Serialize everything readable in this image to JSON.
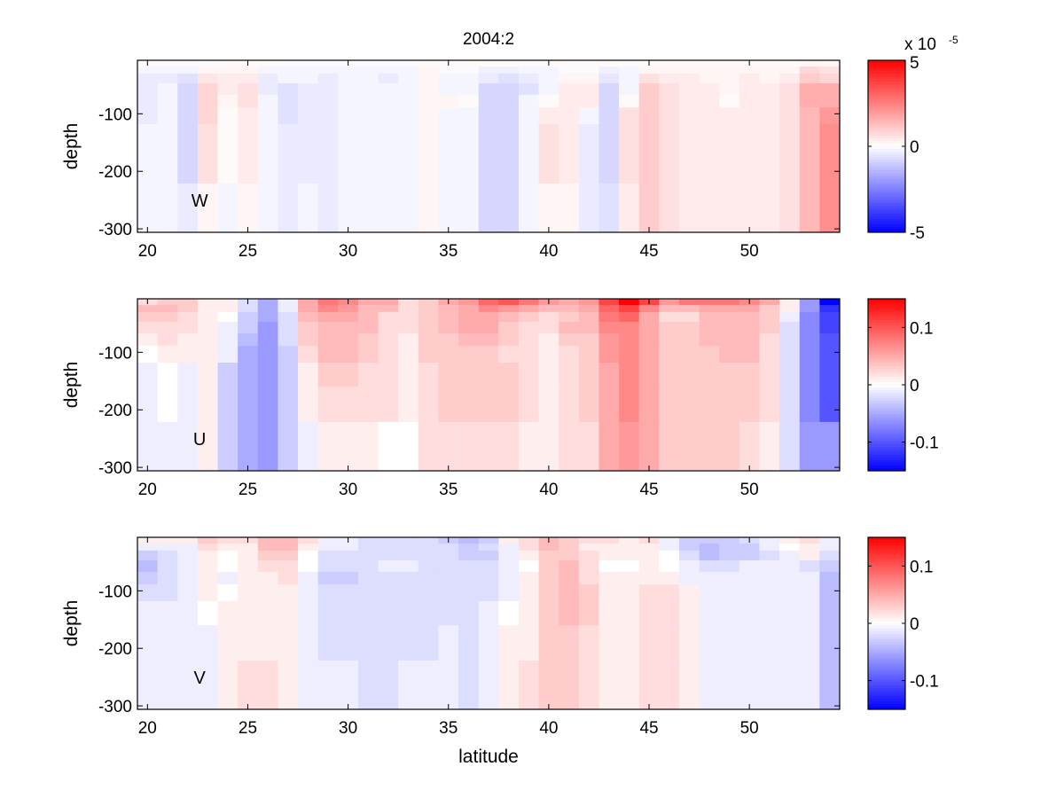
{
  "chart_data": {
    "type": "heatmap",
    "title": "2004:2",
    "xlabel": "latitude",
    "ylabel": "depth",
    "xlim": [
      19.5,
      54.5
    ],
    "ylim": [
      -306,
      -7
    ],
    "xticks": [
      20,
      25,
      30,
      35,
      40,
      45,
      50
    ],
    "yticks": [
      -100,
      -200,
      -300
    ],
    "latitudes": [
      20,
      21,
      22,
      23,
      24,
      25,
      26,
      27,
      28,
      29,
      30,
      31,
      32,
      33,
      34,
      35,
      36,
      37,
      38,
      39,
      40,
      41,
      42,
      43,
      44,
      45,
      46,
      47,
      48,
      49,
      50,
      51,
      52,
      53,
      54
    ],
    "depth_edges": [
      -7,
      -18,
      -30,
      -47,
      -67,
      -89,
      -118,
      -160,
      -221,
      -306
    ],
    "colormap": {
      "negative": "#0000ff",
      "zero": "#ffffff",
      "positive": "#ff0000"
    },
    "panels": [
      {
        "name": "W",
        "label": "W",
        "clim": [
          -5,
          5
        ],
        "colorbar": {
          "ticks": [
            5,
            0,
            -5
          ],
          "tick_labels": [
            "5",
            "0",
            "-5"
          ],
          "exponent_label": "x 10",
          "exponent": "-5"
        },
        "values": [
          [
            0.1,
            0.1,
            0.1,
            -0.1,
            0.1,
            0.1,
            0.1,
            -0.1,
            -0.1,
            -0.1,
            -0.1,
            -0.1,
            -0.1,
            -0.1,
            0.1,
            0.1,
            0.1,
            0.1,
            0.1,
            0.1,
            0.1,
            0.1,
            0.1,
            0.1,
            0.1,
            0.1,
            0.1,
            0.1,
            0.1,
            0.1,
            0.1,
            0.1,
            0.1,
            0.2,
            0.2
          ],
          [
            -0.2,
            -0.2,
            -0.2,
            0.2,
            0.2,
            0.2,
            -0.2,
            -0.2,
            -0.2,
            -0.2,
            -0.2,
            -0.2,
            -0.2,
            -0.2,
            0.2,
            -0.1,
            -0.1,
            -0.3,
            -0.3,
            -0.2,
            -0.2,
            -0.1,
            -0.1,
            -0.3,
            -0.2,
            0.2,
            0.2,
            0.2,
            0.2,
            0.2,
            0.2,
            0.2,
            0.2,
            0.8,
            0.6
          ],
          [
            -0.4,
            -0.4,
            -0.6,
            0.5,
            0.4,
            0.4,
            -0.4,
            -0.2,
            -0.2,
            -0.4,
            -0.2,
            -0.2,
            -0.4,
            -0.2,
            0.2,
            -0.2,
            -0.2,
            -0.4,
            -0.6,
            -0.4,
            -0.2,
            0.2,
            0.2,
            -0.5,
            -0.2,
            0.6,
            0.4,
            0.4,
            0.2,
            0.2,
            0.4,
            0.2,
            0.4,
            1.0,
            0.8
          ],
          [
            -0.4,
            -0.2,
            -0.8,
            0.8,
            0.4,
            0.6,
            -0.4,
            -0.6,
            -0.4,
            -0.4,
            -0.2,
            -0.2,
            -0.2,
            -0.2,
            0.2,
            -0.2,
            -0.2,
            -0.8,
            -0.8,
            -0.6,
            -0.2,
            0.4,
            0.4,
            -0.8,
            -0.2,
            1.0,
            0.6,
            0.4,
            0.4,
            0.2,
            0.4,
            0.4,
            0.6,
            1.6,
            1.6
          ],
          [
            -0.4,
            -0.2,
            -0.8,
            0.8,
            0.2,
            0.6,
            -0.2,
            -0.6,
            -0.4,
            -0.4,
            -0.2,
            -0.2,
            -0.2,
            -0.2,
            0.2,
            0.2,
            0.1,
            -0.8,
            -0.8,
            -0.2,
            0.1,
            0.4,
            0.4,
            -0.8,
            0.1,
            1.0,
            0.6,
            0.4,
            0.4,
            0.1,
            0.4,
            0.4,
            0.6,
            1.6,
            1.6
          ],
          [
            -0.4,
            -0.2,
            -0.8,
            0.8,
            0.1,
            0.4,
            -0.2,
            -0.6,
            -0.4,
            -0.4,
            -0.2,
            -0.2,
            -0.2,
            -0.2,
            0.2,
            -0.2,
            -0.2,
            -0.8,
            -0.8,
            -0.2,
            0.4,
            0.4,
            -0.2,
            -0.8,
            0.6,
            1.0,
            0.6,
            0.4,
            0.4,
            0.4,
            0.4,
            0.4,
            0.6,
            1.4,
            2.0
          ],
          [
            -0.2,
            -0.2,
            -0.8,
            0.6,
            0.1,
            0.4,
            -0.2,
            -0.4,
            -0.4,
            -0.4,
            -0.2,
            -0.2,
            -0.2,
            -0.2,
            0.2,
            -0.2,
            -0.2,
            -0.8,
            -0.8,
            -0.2,
            0.6,
            0.4,
            -0.4,
            -0.8,
            0.6,
            1.0,
            0.6,
            0.4,
            0.4,
            0.4,
            0.4,
            0.4,
            0.6,
            1.4,
            2.2
          ],
          [
            -0.2,
            -0.2,
            -0.8,
            0.6,
            0.1,
            0.4,
            -0.2,
            -0.4,
            -0.4,
            -0.4,
            -0.2,
            -0.2,
            -0.2,
            -0.2,
            0.2,
            -0.2,
            -0.2,
            -0.8,
            -0.8,
            -0.2,
            0.6,
            0.4,
            -0.4,
            -0.8,
            0.6,
            1.0,
            0.6,
            0.4,
            0.4,
            0.4,
            0.4,
            0.4,
            0.6,
            1.4,
            2.2
          ],
          [
            -0.2,
            -0.2,
            -0.4,
            0.2,
            -0.2,
            0.2,
            -0.2,
            -0.4,
            -0.2,
            -0.4,
            -0.2,
            -0.2,
            -0.2,
            -0.2,
            0.2,
            -0.2,
            -0.2,
            -0.8,
            -0.8,
            -0.2,
            0.2,
            0.2,
            -0.4,
            -0.6,
            0.4,
            1.0,
            0.6,
            0.4,
            0.4,
            0.4,
            0.4,
            0.4,
            0.6,
            1.4,
            2.2
          ]
        ]
      },
      {
        "name": "U",
        "label": "U",
        "clim": [
          -0.15,
          0.15
        ],
        "colorbar": {
          "ticks": [
            0.1,
            0,
            -0.1
          ],
          "tick_labels": [
            "0.1",
            "0",
            "-0.1"
          ]
        },
        "values": [
          [
            0.02,
            0.03,
            0.03,
            0.01,
            0.01,
            -0.02,
            -0.05,
            -0.01,
            0.05,
            0.08,
            0.07,
            0.05,
            0.05,
            0.02,
            0.03,
            0.05,
            0.06,
            0.09,
            0.1,
            0.08,
            0.06,
            0.05,
            0.06,
            0.11,
            0.15,
            0.11,
            0.06,
            0.08,
            0.08,
            0.08,
            0.07,
            0.05,
            0.01,
            -0.06,
            -0.15
          ],
          [
            0.04,
            0.04,
            0.03,
            0.01,
            0.01,
            -0.02,
            -0.05,
            -0.01,
            0.05,
            0.07,
            0.06,
            0.04,
            0.04,
            0.02,
            0.03,
            0.04,
            0.05,
            0.07,
            0.06,
            0.05,
            0.04,
            0.04,
            0.05,
            0.09,
            0.11,
            0.07,
            0.04,
            0.04,
            0.05,
            0.05,
            0.05,
            0.03,
            0.01,
            -0.06,
            -0.12
          ],
          [
            0.03,
            0.03,
            0.02,
            0.01,
            0.0,
            -0.03,
            -0.05,
            -0.02,
            0.04,
            0.05,
            0.05,
            0.04,
            0.02,
            0.02,
            0.03,
            0.04,
            0.05,
            0.05,
            0.04,
            0.03,
            0.02,
            0.03,
            0.04,
            0.08,
            0.09,
            0.05,
            0.02,
            0.02,
            0.04,
            0.04,
            0.04,
            0.03,
            -0.01,
            -0.07,
            -0.11
          ],
          [
            0.02,
            0.02,
            0.02,
            0.01,
            -0.01,
            -0.03,
            -0.06,
            -0.02,
            0.03,
            0.04,
            0.04,
            0.04,
            0.02,
            0.02,
            0.03,
            0.04,
            0.05,
            0.05,
            0.03,
            0.02,
            0.02,
            0.04,
            0.04,
            0.07,
            0.07,
            0.05,
            0.03,
            0.03,
            0.04,
            0.04,
            0.04,
            0.03,
            -0.02,
            -0.07,
            -0.11
          ],
          [
            0.01,
            0.02,
            0.01,
            0.01,
            -0.01,
            -0.04,
            -0.06,
            -0.02,
            0.03,
            0.04,
            0.04,
            0.03,
            0.02,
            0.01,
            0.03,
            0.03,
            0.04,
            0.04,
            0.03,
            0.02,
            0.01,
            0.03,
            0.03,
            0.06,
            0.07,
            0.05,
            0.03,
            0.03,
            0.04,
            0.04,
            0.04,
            0.02,
            -0.02,
            -0.07,
            -0.1
          ],
          [
            0.0,
            0.01,
            0.01,
            0.01,
            -0.01,
            -0.05,
            -0.06,
            -0.03,
            0.02,
            0.04,
            0.04,
            0.03,
            0.02,
            0.01,
            0.03,
            0.03,
            0.03,
            0.03,
            0.02,
            0.02,
            0.01,
            0.02,
            0.03,
            0.06,
            0.07,
            0.05,
            0.03,
            0.03,
            0.03,
            0.04,
            0.04,
            0.02,
            -0.02,
            -0.07,
            -0.1
          ],
          [
            -0.01,
            0.0,
            -0.01,
            0.01,
            -0.03,
            -0.05,
            -0.06,
            -0.03,
            0.01,
            0.03,
            0.03,
            0.02,
            0.02,
            0.01,
            0.02,
            0.03,
            0.03,
            0.03,
            0.03,
            0.02,
            0.01,
            0.02,
            0.03,
            0.05,
            0.07,
            0.05,
            0.03,
            0.03,
            0.03,
            0.03,
            0.03,
            0.02,
            -0.02,
            -0.07,
            -0.1
          ],
          [
            -0.01,
            0.0,
            -0.01,
            0.01,
            -0.03,
            -0.05,
            -0.06,
            -0.03,
            0.01,
            0.02,
            0.02,
            0.02,
            0.02,
            0.01,
            0.02,
            0.03,
            0.03,
            0.03,
            0.03,
            0.02,
            0.01,
            0.02,
            0.03,
            0.05,
            0.07,
            0.05,
            0.03,
            0.03,
            0.03,
            0.03,
            0.03,
            0.02,
            -0.02,
            -0.07,
            -0.1
          ],
          [
            -0.01,
            -0.01,
            -0.01,
            0.01,
            -0.03,
            -0.05,
            -0.06,
            -0.03,
            -0.01,
            0.01,
            0.01,
            0.01,
            0.0,
            0.0,
            0.02,
            0.02,
            0.02,
            0.02,
            0.02,
            0.01,
            0.01,
            0.02,
            0.02,
            0.05,
            0.06,
            0.05,
            0.03,
            0.03,
            0.03,
            0.03,
            0.02,
            0.01,
            -0.02,
            -0.06,
            -0.06
          ]
        ]
      },
      {
        "name": "V",
        "label": "V",
        "clim": [
          -0.15,
          0.15
        ],
        "colorbar": {
          "ticks": [
            0.1,
            0,
            -0.1
          ],
          "tick_labels": [
            "0.1",
            "0",
            "-0.1"
          ]
        },
        "values": [
          [
            0.01,
            0.01,
            0.01,
            0.03,
            0.02,
            0.02,
            0.04,
            0.04,
            0.02,
            -0.01,
            -0.01,
            -0.02,
            -0.02,
            -0.02,
            -0.02,
            -0.03,
            -0.04,
            -0.03,
            0.01,
            0.02,
            0.04,
            0.03,
            0.02,
            0.02,
            0.01,
            0.02,
            -0.01,
            -0.03,
            -0.03,
            -0.03,
            -0.02,
            -0.01,
            0.01,
            0.02,
            -0.01
          ],
          [
            -0.01,
            -0.01,
            -0.01,
            0.02,
            0.01,
            0.01,
            0.04,
            0.04,
            0.01,
            -0.01,
            -0.01,
            -0.02,
            -0.02,
            -0.02,
            -0.02,
            -0.02,
            -0.03,
            -0.02,
            -0.01,
            0.02,
            0.04,
            0.03,
            0.01,
            0.01,
            0.01,
            0.01,
            -0.01,
            -0.03,
            -0.04,
            -0.03,
            -0.03,
            -0.01,
            0.0,
            0.01,
            -0.01
          ],
          [
            -0.03,
            -0.02,
            -0.01,
            0.01,
            0.0,
            0.01,
            0.03,
            0.03,
            0.0,
            -0.02,
            -0.02,
            -0.02,
            -0.02,
            -0.02,
            -0.02,
            -0.02,
            -0.03,
            -0.03,
            -0.01,
            0.01,
            0.03,
            0.03,
            0.02,
            0.01,
            0.01,
            0.01,
            0.0,
            -0.02,
            -0.04,
            -0.03,
            -0.03,
            -0.02,
            -0.01,
            0.01,
            -0.02
          ],
          [
            -0.04,
            -0.02,
            -0.01,
            0.01,
            0.0,
            0.01,
            0.02,
            0.02,
            0.0,
            -0.02,
            -0.02,
            -0.02,
            -0.01,
            -0.01,
            -0.02,
            -0.02,
            -0.02,
            -0.02,
            -0.01,
            0.0,
            0.03,
            0.04,
            0.02,
            0.0,
            0.0,
            0.01,
            0.0,
            -0.01,
            -0.02,
            -0.02,
            -0.01,
            -0.01,
            -0.01,
            -0.02,
            -0.03
          ],
          [
            -0.03,
            -0.02,
            -0.01,
            0.01,
            -0.01,
            0.01,
            0.01,
            0.02,
            -0.01,
            -0.03,
            -0.03,
            -0.02,
            -0.02,
            -0.02,
            -0.02,
            -0.02,
            -0.02,
            -0.02,
            -0.01,
            0.01,
            0.03,
            0.04,
            0.02,
            0.01,
            0.01,
            0.01,
            0.01,
            -0.01,
            -0.01,
            -0.01,
            -0.01,
            -0.01,
            -0.01,
            -0.01,
            -0.04
          ],
          [
            -0.02,
            -0.02,
            -0.01,
            0.01,
            0.0,
            0.01,
            0.01,
            0.01,
            -0.01,
            -0.02,
            -0.02,
            -0.02,
            -0.02,
            -0.02,
            -0.02,
            -0.02,
            -0.02,
            -0.02,
            -0.01,
            0.01,
            0.03,
            0.04,
            0.03,
            0.01,
            0.01,
            0.02,
            0.02,
            0.01,
            -0.01,
            -0.01,
            -0.01,
            -0.01,
            -0.01,
            -0.01,
            -0.04
          ],
          [
            -0.01,
            -0.01,
            -0.01,
            0.0,
            0.01,
            0.01,
            0.01,
            0.01,
            -0.01,
            -0.02,
            -0.02,
            -0.02,
            -0.02,
            -0.02,
            -0.02,
            -0.02,
            -0.02,
            -0.01,
            0.0,
            0.01,
            0.03,
            0.04,
            0.03,
            0.01,
            0.01,
            0.02,
            0.02,
            0.01,
            -0.01,
            -0.01,
            -0.01,
            -0.01,
            -0.01,
            -0.01,
            -0.04
          ],
          [
            -0.01,
            -0.01,
            -0.01,
            -0.01,
            0.01,
            0.01,
            0.01,
            0.01,
            -0.01,
            -0.02,
            -0.02,
            -0.02,
            -0.02,
            -0.02,
            -0.02,
            -0.01,
            -0.02,
            -0.01,
            0.01,
            0.01,
            0.03,
            0.03,
            0.02,
            0.01,
            0.01,
            0.02,
            0.02,
            0.01,
            -0.01,
            -0.01,
            -0.01,
            -0.01,
            -0.01,
            -0.01,
            -0.04
          ],
          [
            -0.01,
            -0.01,
            -0.01,
            -0.01,
            0.01,
            0.02,
            0.02,
            0.01,
            -0.01,
            -0.01,
            -0.01,
            -0.02,
            -0.02,
            -0.01,
            -0.01,
            -0.01,
            -0.02,
            -0.01,
            0.01,
            0.02,
            0.03,
            0.03,
            0.02,
            0.01,
            0.01,
            0.02,
            0.02,
            0.01,
            -0.01,
            -0.01,
            -0.01,
            -0.01,
            -0.01,
            -0.01,
            -0.04
          ]
        ]
      }
    ]
  }
}
